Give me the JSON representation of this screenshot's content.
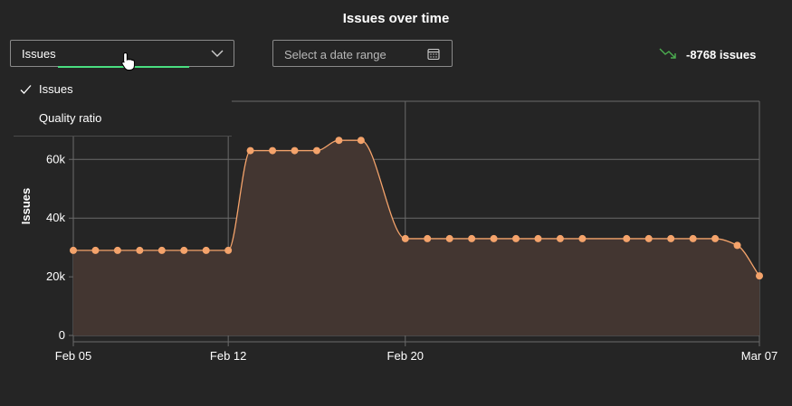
{
  "title": "Issues over time",
  "metric_select": {
    "value": "Issues",
    "options": [
      {
        "label": "Issues",
        "checked": true
      },
      {
        "label": "Quality ratio",
        "checked": false
      }
    ]
  },
  "date_range": {
    "placeholder": "Select a date range"
  },
  "trend": {
    "text": "-8768 issues",
    "direction": "down",
    "color": "#4caf50"
  },
  "colors": {
    "line": "#f4a36b",
    "fill": "#433631",
    "grid": "#6a6a6a",
    "background": "#252525"
  },
  "chart_data": {
    "type": "area",
    "title": "Issues over time",
    "xlabel": "",
    "ylabel": "Issues",
    "x_ticks": [
      "Feb 05",
      "Feb 12",
      "Feb 20",
      "Mar 07"
    ],
    "y_ticks": [
      "0",
      "20k",
      "40k",
      "60k"
    ],
    "ylim": [
      0,
      80000
    ],
    "grid": true,
    "x": [
      "Feb 05",
      "Feb 06",
      "Feb 07",
      "Feb 08",
      "Feb 09",
      "Feb 10",
      "Feb 11",
      "Feb 12",
      "Feb 13",
      "Feb 14",
      "Feb 15",
      "Feb 16",
      "Feb 17",
      "Feb 18",
      "Feb 20",
      "Feb 21",
      "Feb 22",
      "Feb 23",
      "Feb 24",
      "Feb 25",
      "Feb 26",
      "Feb 27",
      "Feb 28",
      "Mar 01",
      "Mar 02",
      "Mar 03",
      "Mar 04",
      "Mar 05",
      "Mar 06",
      "Mar 07"
    ],
    "series": [
      {
        "values": [
          29000,
          29000,
          29000,
          29000,
          29000,
          29000,
          29000,
          29000,
          63000,
          63000,
          63000,
          63000,
          66500,
          66500,
          33000,
          33000,
          33000,
          33000,
          33000,
          33000,
          33000,
          33000,
          33000,
          33000,
          33000,
          33000,
          33000,
          33000,
          30700,
          20300
        ]
      }
    ]
  }
}
